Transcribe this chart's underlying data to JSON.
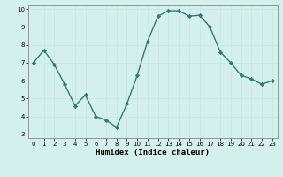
{
  "x": [
    0,
    1,
    2,
    3,
    4,
    5,
    6,
    7,
    8,
    9,
    10,
    11,
    12,
    13,
    14,
    15,
    16,
    17,
    18,
    19,
    20,
    21,
    22,
    23
  ],
  "y": [
    7.0,
    7.7,
    6.9,
    5.8,
    4.6,
    5.2,
    4.0,
    3.8,
    3.4,
    4.7,
    6.3,
    8.2,
    9.6,
    9.9,
    9.9,
    9.6,
    9.65,
    9.0,
    7.6,
    7.0,
    6.3,
    6.1,
    5.8,
    6.0
  ],
  "xlim": [
    -0.5,
    23.5
  ],
  "ylim": [
    2.8,
    10.2
  ],
  "yticks": [
    3,
    4,
    5,
    6,
    7,
    8,
    9,
    10
  ],
  "xticks": [
    0,
    1,
    2,
    3,
    4,
    5,
    6,
    7,
    8,
    9,
    10,
    11,
    12,
    13,
    14,
    15,
    16,
    17,
    18,
    19,
    20,
    21,
    22,
    23
  ],
  "xlabel": "Humidex (Indice chaleur)",
  "line_color": "#2e7d6e",
  "marker_color": "#2e7d6e",
  "bg_color": "#d4f0ec",
  "grid_color": "#c8e8e0",
  "figsize": [
    3.2,
    2.0
  ],
  "dpi": 100,
  "tick_fontsize": 5.0,
  "xlabel_fontsize": 6.5
}
